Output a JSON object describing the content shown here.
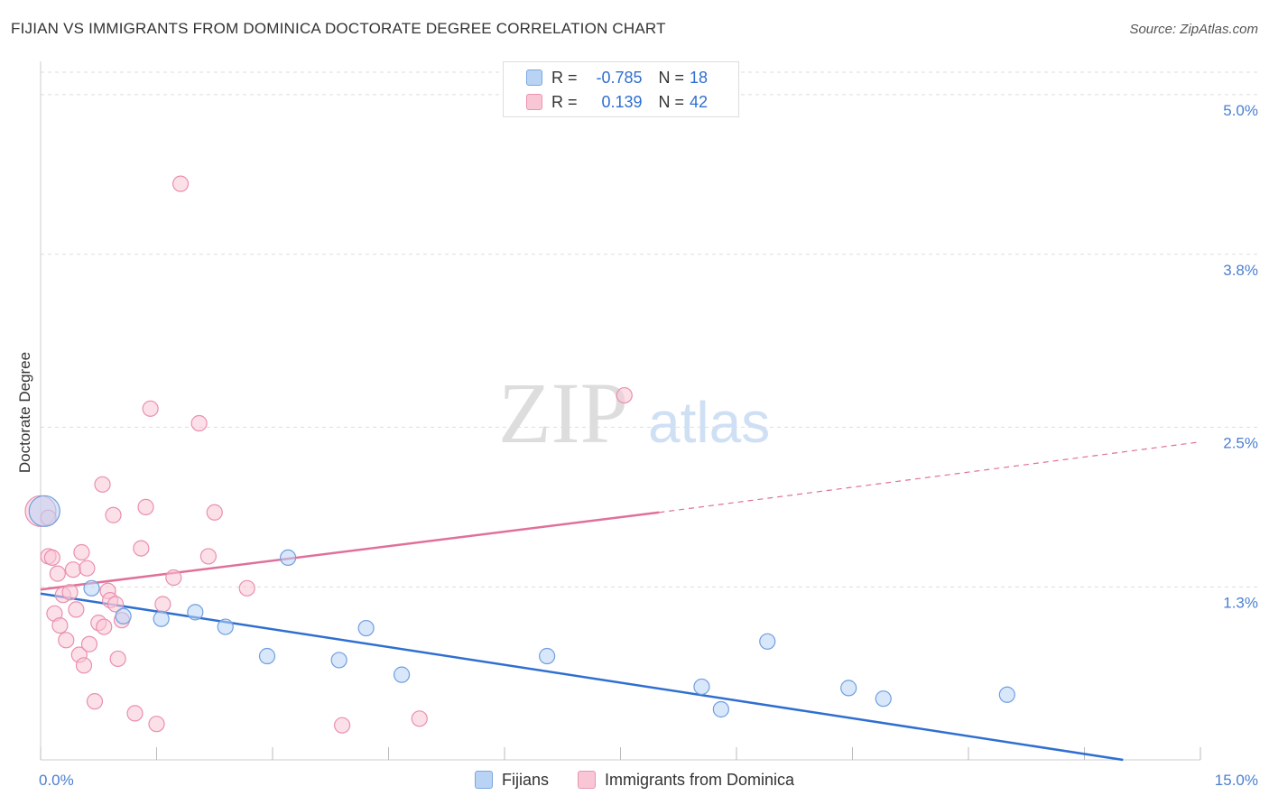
{
  "chart_data": {
    "type": "scatter",
    "title": "FIJIAN VS IMMIGRANTS FROM DOMINICA DOCTORATE DEGREE CORRELATION CHART",
    "source": "Source: ZipAtlas.com",
    "xlabel": "",
    "ylabel": "Doctorate Degree",
    "xlim": [
      0,
      15
    ],
    "ylim": [
      0,
      5.25
    ],
    "x_tick_labels": [
      "0.0%",
      "15.0%"
    ],
    "y_ticks": [
      1.3,
      2.5,
      3.8,
      5.0
    ],
    "y_tick_labels": [
      "1.3%",
      "2.5%",
      "3.8%",
      "5.0%"
    ],
    "watermark": {
      "zip": "ZIP",
      "atlas": "atlas"
    },
    "colors": {
      "fijian_fill": "#b9d3f5",
      "fijian_stroke": "#6f9fdf",
      "fijian_line": "#2f6fd0",
      "dominica_fill": "#f9c6d6",
      "dominica_stroke": "#ea8fae",
      "dominica_line": "#e0709a",
      "axis_text": "#4a7fd0",
      "grid": "#dddddd"
    },
    "stats": {
      "r_label": "R =",
      "n_label": "N =",
      "rows": [
        {
          "series": "Fijians",
          "r": "-0.785",
          "n": "18"
        },
        {
          "series": "Immigrants from Dominica",
          "r": "0.139",
          "n": "42"
        }
      ]
    },
    "series": [
      {
        "name": "Fijians",
        "points": [
          [
            0.05,
            1.87,
            2.0
          ],
          [
            0.66,
            1.29,
            1
          ],
          [
            1.07,
            1.08,
            1
          ],
          [
            1.56,
            1.06,
            1
          ],
          [
            2.0,
            1.11,
            1
          ],
          [
            2.39,
            1.0,
            1
          ],
          [
            2.93,
            0.78,
            1
          ],
          [
            3.2,
            1.52,
            1
          ],
          [
            3.86,
            0.75,
            1
          ],
          [
            4.21,
            0.99,
            1
          ],
          [
            4.67,
            0.64,
            1
          ],
          [
            6.55,
            0.78,
            1
          ],
          [
            8.55,
            0.55,
            1
          ],
          [
            8.8,
            0.38,
            1
          ],
          [
            9.4,
            0.89,
            1
          ],
          [
            10.45,
            0.54,
            1
          ],
          [
            10.9,
            0.46,
            1
          ],
          [
            12.5,
            0.49,
            1
          ]
        ],
        "trend": {
          "x_start": 0,
          "y_start": 1.25,
          "x_end": 14.0,
          "y_end": 0.0
        }
      },
      {
        "name": "Immigrants from Dominica",
        "points": [
          [
            0.0,
            1.87,
            2.0
          ],
          [
            0.1,
            1.82,
            1
          ],
          [
            0.1,
            1.53,
            1
          ],
          [
            0.15,
            1.52,
            1
          ],
          [
            0.18,
            1.1,
            1
          ],
          [
            0.22,
            1.4,
            1
          ],
          [
            0.25,
            1.01,
            1
          ],
          [
            0.29,
            1.24,
            1
          ],
          [
            0.33,
            0.9,
            1
          ],
          [
            0.38,
            1.26,
            1
          ],
          [
            0.42,
            1.43,
            1
          ],
          [
            0.46,
            1.13,
            1
          ],
          [
            0.5,
            0.79,
            1
          ],
          [
            0.53,
            1.56,
            1
          ],
          [
            0.56,
            0.71,
            1
          ],
          [
            0.6,
            1.44,
            1
          ],
          [
            0.63,
            0.87,
            1
          ],
          [
            0.7,
            0.44,
            1
          ],
          [
            0.75,
            1.03,
            1
          ],
          [
            0.8,
            2.07,
            1
          ],
          [
            0.82,
            1.0,
            1
          ],
          [
            0.87,
            1.27,
            1
          ],
          [
            0.9,
            1.2,
            1
          ],
          [
            0.94,
            1.84,
            1
          ],
          [
            0.97,
            1.17,
            1
          ],
          [
            1.0,
            0.76,
            1
          ],
          [
            1.05,
            1.05,
            1
          ],
          [
            1.22,
            0.35,
            1
          ],
          [
            1.3,
            1.59,
            1
          ],
          [
            1.36,
            1.9,
            1
          ],
          [
            1.42,
            2.64,
            1
          ],
          [
            1.5,
            0.27,
            1
          ],
          [
            1.58,
            1.17,
            1
          ],
          [
            1.72,
            1.37,
            1
          ],
          [
            1.81,
            4.33,
            1
          ],
          [
            2.05,
            2.53,
            1
          ],
          [
            2.17,
            1.53,
            1
          ],
          [
            2.25,
            1.86,
            1
          ],
          [
            2.67,
            1.29,
            1
          ],
          [
            3.9,
            0.26,
            1
          ],
          [
            4.9,
            0.31,
            1
          ],
          [
            7.55,
            2.74,
            1
          ]
        ],
        "trend": {
          "x_start": 0,
          "y_start": 1.28,
          "x_end": 8.0,
          "y_end": 1.86,
          "dash_to_x": 15.0,
          "dash_to_y": 2.39
        }
      }
    ]
  },
  "legend": {
    "items": [
      {
        "label": "Fijians"
      },
      {
        "label": "Immigrants from Dominica"
      }
    ]
  }
}
